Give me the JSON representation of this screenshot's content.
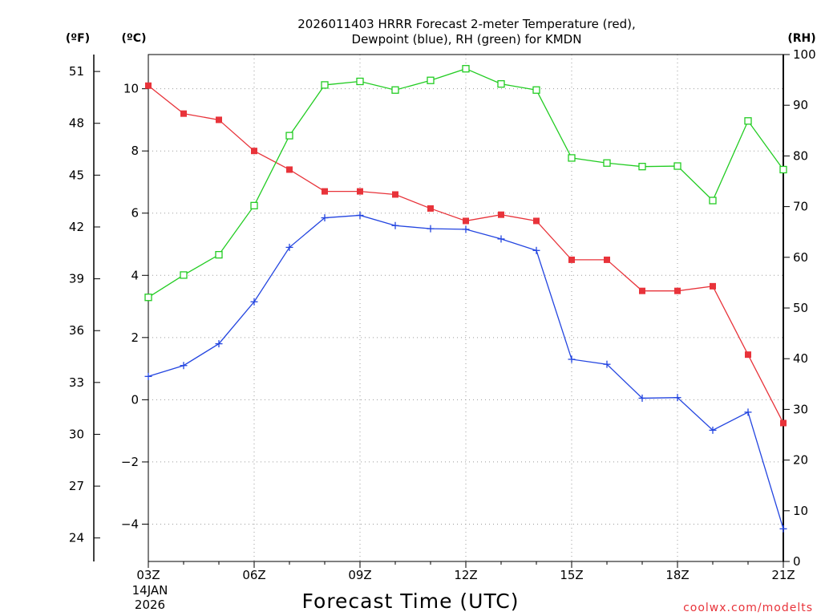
{
  "title_lines": [
    "2026011403 HRRR Forecast 2-meter Temperature (red),",
    "Dewpoint (blue), RH (green) for KMDN"
  ],
  "unit_labels": {
    "fahrenheit": "(ºF)",
    "celsius": "(ºC)",
    "rh": "(RH)"
  },
  "date_label": {
    "day": "14JAN",
    "year": "2026"
  },
  "credit": "coolwx.com/modelts",
  "chart_data": {
    "type": "line",
    "title": "2026011403 HRRR Forecast 2-meter Temperature (red), Dewpoint (blue), RH (green) for KMDN",
    "xlabel": "Forecast Time (UTC)",
    "x_hours": [
      3,
      4,
      5,
      6,
      7,
      8,
      9,
      10,
      11,
      12,
      13,
      14,
      15,
      16,
      17,
      18,
      19,
      20,
      21
    ],
    "x_tick_hours": [
      3,
      6,
      9,
      12,
      15,
      18,
      21
    ],
    "x_tick_labels": [
      "03Z",
      "06Z",
      "09Z",
      "12Z",
      "15Z",
      "18Z",
      "21Z"
    ],
    "xlim": [
      3,
      21
    ],
    "celsius_axis": {
      "ylim": [
        -5.2,
        11.1
      ],
      "ticks": [
        -4,
        -2,
        0,
        2,
        4,
        6,
        8,
        10
      ]
    },
    "fahrenheit_axis": {
      "ticks": [
        24,
        27,
        30,
        33,
        36,
        39,
        42,
        45,
        48,
        51
      ]
    },
    "rh_axis": {
      "ylim": [
        0,
        100
      ],
      "ticks": [
        0,
        10,
        20,
        30,
        40,
        50,
        60,
        70,
        80,
        90,
        100
      ]
    },
    "series": [
      {
        "name": "Temperature",
        "axis": "celsius",
        "color": "#e8333a",
        "marker": "filled-square",
        "values": [
          10.1,
          9.2,
          9.0,
          8.0,
          7.4,
          6.7,
          6.7,
          6.6,
          6.15,
          5.75,
          5.95,
          5.75,
          4.5,
          4.5,
          3.5,
          3.5,
          3.65,
          1.45,
          -0.75
        ]
      },
      {
        "name": "Dewpoint",
        "axis": "celsius",
        "color": "#2345e0",
        "marker": "plus",
        "values": [
          0.75,
          1.1,
          1.8,
          3.15,
          4.9,
          5.85,
          5.93,
          5.6,
          5.5,
          5.48,
          5.17,
          4.8,
          1.3,
          1.14,
          0.05,
          0.07,
          -0.98,
          -0.4,
          -4.15
        ]
      },
      {
        "name": "RH",
        "axis": "rh",
        "color": "#22cc22",
        "marker": "open-square",
        "values": [
          52.1,
          56.5,
          60.5,
          70.2,
          84.0,
          94.0,
          94.7,
          93.0,
          94.9,
          97.2,
          94.2,
          93.0,
          79.6,
          78.6,
          77.9,
          78.0,
          71.2,
          86.9,
          77.3
        ]
      }
    ]
  }
}
